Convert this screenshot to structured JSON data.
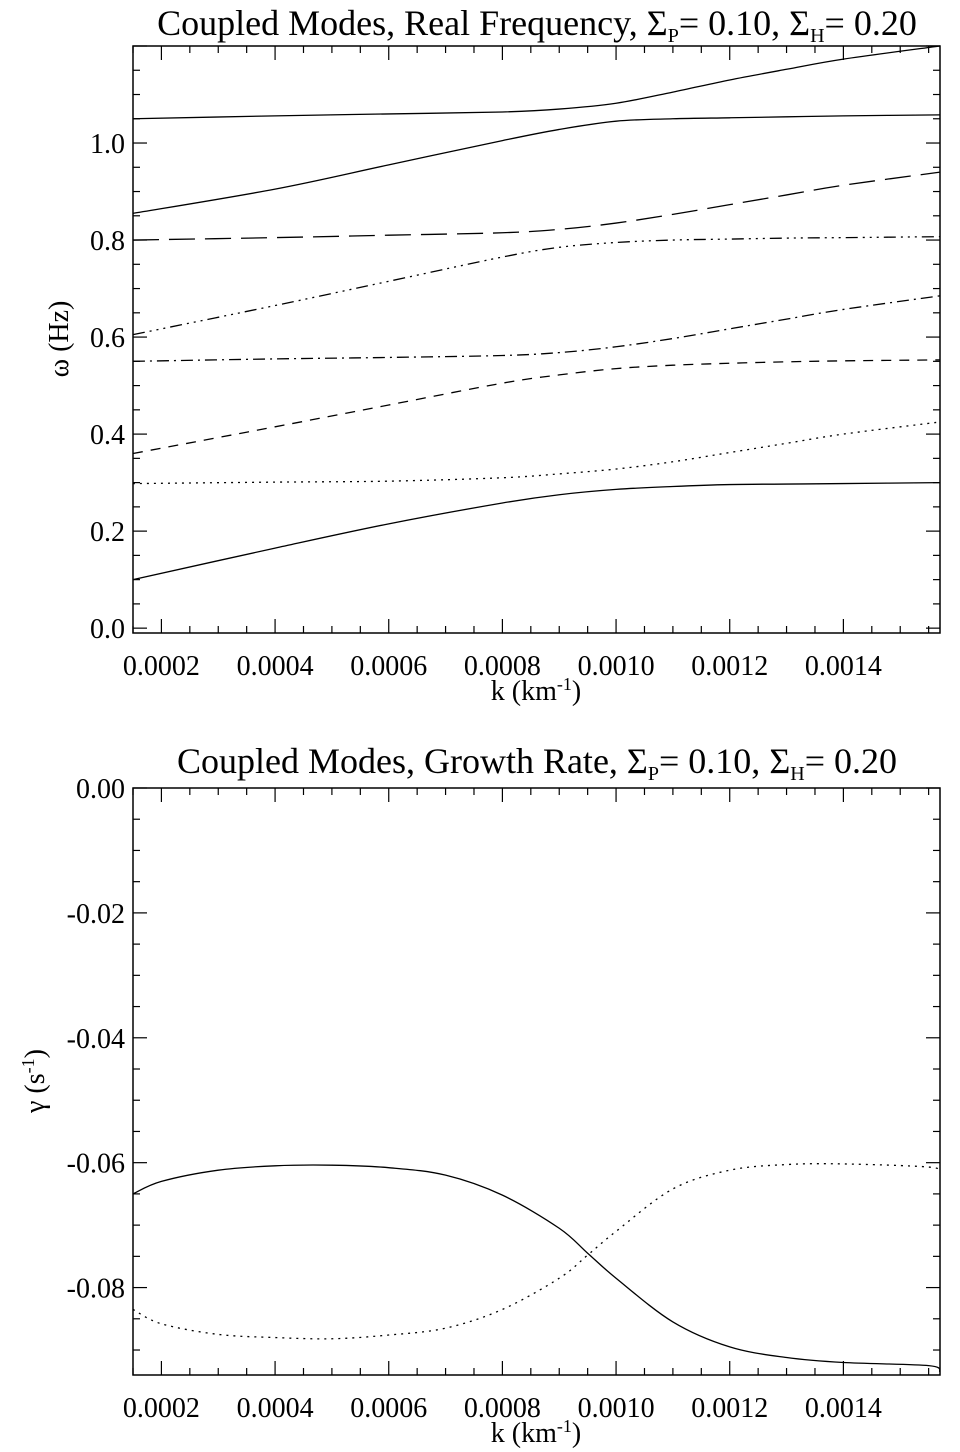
{
  "chart_data": [
    {
      "type": "line",
      "title": {
        "main": "Coupled Modes, Real Frequency, ",
        "sym1": "Σ",
        "sub1": "P",
        "val1": "=  0.10, ",
        "sym2": "Σ",
        "sub2": "H",
        "val2": "=  0.20"
      },
      "xlabel": {
        "main": "k (km",
        "sup": "-1",
        "tail": ")"
      },
      "ylabel": {
        "main": "ω (Hz)"
      },
      "xlim": [
        0.00015,
        0.00157
      ],
      "ylim": [
        -0.01,
        1.2
      ],
      "xticks": [
        {
          "value": 0.0002,
          "label": "0.0002"
        },
        {
          "value": 0.0004,
          "label": "0.0004"
        },
        {
          "value": 0.0006,
          "label": "0.0006"
        },
        {
          "value": 0.0008,
          "label": "0.0008"
        },
        {
          "value": 0.001,
          "label": "0.0010"
        },
        {
          "value": 0.0012,
          "label": "0.0012"
        },
        {
          "value": 0.0014,
          "label": "0.0014"
        }
      ],
      "yticks": [
        {
          "value": 0.0,
          "label": "0.0"
        },
        {
          "value": 0.2,
          "label": "0.2"
        },
        {
          "value": 0.4,
          "label": "0.4"
        },
        {
          "value": 0.6,
          "label": "0.6"
        },
        {
          "value": 0.8,
          "label": "0.8"
        },
        {
          "value": 1.0,
          "label": "1.0"
        }
      ],
      "series": [
        {
          "style": "solid",
          "x": [
            0.00015,
            0.0004,
            0.0006,
            0.0008,
            0.0009,
            0.001,
            0.0011,
            0.0012,
            0.0013,
            0.0014,
            0.00157
          ],
          "y": [
            1.05,
            1.056,
            1.06,
            1.064,
            1.07,
            1.082,
            1.105,
            1.13,
            1.152,
            1.173,
            1.2
          ]
        },
        {
          "style": "solid",
          "x": [
            0.00015,
            0.0004,
            0.0006,
            0.0008,
            0.0009,
            0.001,
            0.0011,
            0.0012,
            0.0013,
            0.0014,
            0.00157
          ],
          "y": [
            0.855,
            0.905,
            0.955,
            1.005,
            1.028,
            1.045,
            1.05,
            1.052,
            1.054,
            1.056,
            1.058
          ]
        },
        {
          "style": "longdash",
          "x": [
            0.00015,
            0.0004,
            0.0006,
            0.0008,
            0.0009,
            0.001,
            0.0011,
            0.0012,
            0.0013,
            0.0014,
            0.00157
          ],
          "y": [
            0.8,
            0.805,
            0.81,
            0.815,
            0.822,
            0.835,
            0.853,
            0.873,
            0.893,
            0.913,
            0.94
          ]
        },
        {
          "style": "dashdotdotdot",
          "x": [
            0.00015,
            0.0004,
            0.0006,
            0.0008,
            0.0009,
            0.001,
            0.0011,
            0.0012,
            0.0013,
            0.0014,
            0.00157
          ],
          "y": [
            0.605,
            0.665,
            0.715,
            0.765,
            0.785,
            0.795,
            0.8,
            0.802,
            0.804,
            0.805,
            0.807
          ]
        },
        {
          "style": "dashdot",
          "x": [
            0.00015,
            0.0004,
            0.0006,
            0.0008,
            0.0009,
            0.001,
            0.0011,
            0.0012,
            0.0013,
            0.0014,
            0.00157
          ],
          "y": [
            0.55,
            0.555,
            0.558,
            0.562,
            0.568,
            0.58,
            0.597,
            0.617,
            0.637,
            0.657,
            0.685
          ]
        },
        {
          "style": "dash",
          "x": [
            0.00015,
            0.0004,
            0.0006,
            0.0008,
            0.0009,
            0.001,
            0.0011,
            0.0012,
            0.0013,
            0.0014,
            0.00157
          ],
          "y": [
            0.36,
            0.415,
            0.46,
            0.505,
            0.522,
            0.535,
            0.542,
            0.546,
            0.549,
            0.551,
            0.553
          ]
        },
        {
          "style": "dot",
          "x": [
            0.00015,
            0.0004,
            0.0006,
            0.0008,
            0.0009,
            0.001,
            0.0011,
            0.0012,
            0.0013,
            0.0014,
            0.00157
          ],
          "y": [
            0.298,
            0.301,
            0.303,
            0.31,
            0.318,
            0.328,
            0.343,
            0.362,
            0.381,
            0.4,
            0.425
          ]
        },
        {
          "style": "solid",
          "x": [
            0.00015,
            0.0004,
            0.0006,
            0.0008,
            0.0009,
            0.001,
            0.0011,
            0.0012,
            0.0013,
            0.0014,
            0.00157
          ],
          "y": [
            0.1,
            0.165,
            0.215,
            0.258,
            0.275,
            0.286,
            0.292,
            0.296,
            0.297,
            0.298,
            0.3
          ]
        }
      ]
    },
    {
      "type": "line",
      "title": {
        "main": "Coupled Modes, Growth Rate, ",
        "sym1": "Σ",
        "sub1": "P",
        "val1": "=  0.10, ",
        "sym2": "Σ",
        "sub2": "H",
        "val2": "=  0.20"
      },
      "xlabel": {
        "main": "k (km",
        "sup": "-1",
        "tail": ")"
      },
      "ylabel": {
        "main": "γ (s",
        "sup": "-1",
        "tail": ")"
      },
      "xlim": [
        0.00015,
        0.00157
      ],
      "ylim": [
        -0.094,
        0.0
      ],
      "xticks": [
        {
          "value": 0.0002,
          "label": "0.0002"
        },
        {
          "value": 0.0004,
          "label": "0.0004"
        },
        {
          "value": 0.0006,
          "label": "0.0006"
        },
        {
          "value": 0.0008,
          "label": "0.0008"
        },
        {
          "value": 0.001,
          "label": "0.0010"
        },
        {
          "value": 0.0012,
          "label": "0.0012"
        },
        {
          "value": 0.0014,
          "label": "0.0014"
        }
      ],
      "yticks": [
        {
          "value": 0.0,
          "label": "0.00"
        },
        {
          "value": -0.02,
          "label": "-0.02"
        },
        {
          "value": -0.04,
          "label": "-0.04"
        },
        {
          "value": -0.06,
          "label": "-0.06"
        },
        {
          "value": -0.08,
          "label": "-0.08"
        }
      ],
      "series": [
        {
          "style": "solid",
          "x": [
            0.00015,
            0.0002,
            0.0003,
            0.0004,
            0.0005,
            0.0006,
            0.0007,
            0.0008,
            0.0009,
            0.00095,
            0.001,
            0.0011,
            0.0012,
            0.0013,
            0.0014,
            0.00155,
            0.00157
          ],
          "y": [
            -0.065,
            -0.063,
            -0.0612,
            -0.0605,
            -0.0604,
            -0.0608,
            -0.062,
            -0.0652,
            -0.0705,
            -0.0745,
            -0.0785,
            -0.0855,
            -0.0895,
            -0.0912,
            -0.092,
            -0.0925,
            -0.0935
          ]
        },
        {
          "style": "dot",
          "x": [
            0.00015,
            0.0002,
            0.0003,
            0.0004,
            0.0005,
            0.0006,
            0.0007,
            0.0008,
            0.0009,
            0.00095,
            0.001,
            0.0011,
            0.0012,
            0.0013,
            0.0014,
            0.00155,
            0.00157
          ],
          "y": [
            -0.0835,
            -0.0858,
            -0.0875,
            -0.088,
            -0.0882,
            -0.0876,
            -0.0865,
            -0.0835,
            -0.0785,
            -0.0748,
            -0.071,
            -0.0642,
            -0.0612,
            -0.0603,
            -0.0602,
            -0.0607,
            -0.0615
          ]
        }
      ]
    }
  ]
}
